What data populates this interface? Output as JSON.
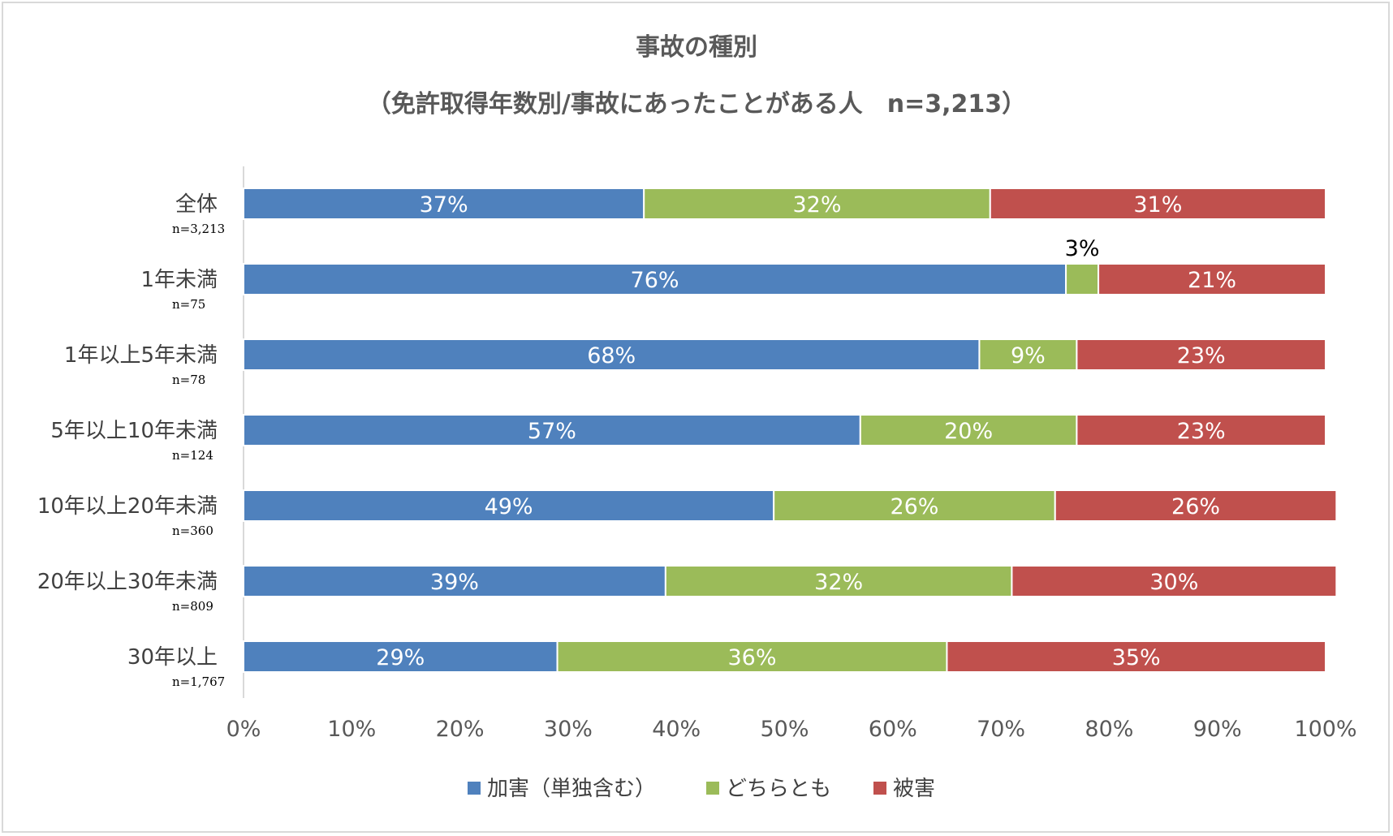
{
  "chart_data": {
    "type": "bar",
    "orientation": "horizontal",
    "stacked": "percent",
    "title": "事故の種別",
    "subtitle": "（免許取得年数別/事故にあったことがある人　n=3,213）",
    "categories": [
      "全体",
      "1年未満",
      "1年以上5年未満",
      "5年以上10年未満",
      "10年以上20年未満",
      "20年以上30年未満",
      "30年以上"
    ],
    "sample_sizes": [
      "n=3,213",
      "n=75",
      "n=78",
      "n=124",
      "n=360",
      "n=809",
      "n=1,767"
    ],
    "series": [
      {
        "name": "加害（単独含む）",
        "color": "#4f81bd",
        "values": [
          37,
          76,
          68,
          57,
          49,
          39,
          29
        ],
        "labels": [
          "37%",
          "76%",
          "68%",
          "57%",
          "49%",
          "39%",
          "29%"
        ]
      },
      {
        "name": "どちらとも",
        "color": "#9bbb59",
        "values": [
          32,
          3,
          9,
          20,
          26,
          32,
          36
        ],
        "labels": [
          "32%",
          "3%",
          "9%",
          "20%",
          "26%",
          "32%",
          "36%"
        ]
      },
      {
        "name": "被害",
        "color": "#c0504d",
        "values": [
          31,
          21,
          23,
          23,
          26,
          30,
          35
        ],
        "labels": [
          "31%",
          "21%",
          "23%",
          "23%",
          "26%",
          "30%",
          "35%"
        ]
      }
    ],
    "xlim": [
      0,
      100
    ],
    "xticks": [
      "0%",
      "10%",
      "20%",
      "30%",
      "40%",
      "50%",
      "60%",
      "70%",
      "80%",
      "90%",
      "100%"
    ],
    "legend_position": "bottom",
    "grid": false
  }
}
